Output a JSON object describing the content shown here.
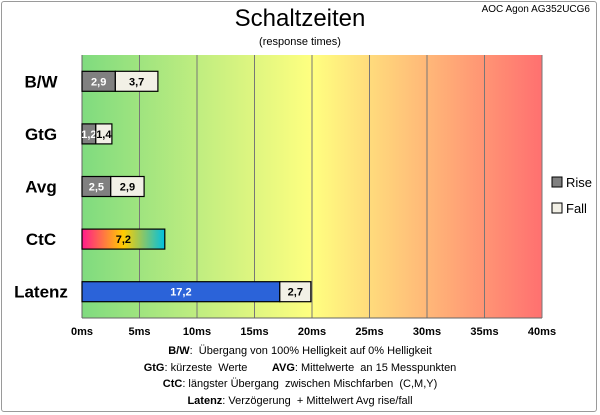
{
  "title": "Schaltzeiten",
  "subtitle": "(response times)",
  "corner_label": "AOC Agon AG352UCG6",
  "chart_data": {
    "type": "bar",
    "orientation": "horizontal",
    "stacked": true,
    "categories": [
      "B/W",
      "GtG",
      "Avg",
      "CtC",
      "Latenz"
    ],
    "series": [
      {
        "name": "Rise",
        "values": [
          2.9,
          1.2,
          2.5,
          7.2,
          17.2
        ],
        "labels": [
          "2,9",
          "1,2",
          "2,5",
          "7,2",
          "17,2"
        ]
      },
      {
        "name": "Fall",
        "values": [
          3.7,
          1.4,
          2.9,
          null,
          2.7
        ],
        "labels": [
          "3,7",
          "1,4",
          "2,9",
          null,
          "2,7"
        ]
      }
    ],
    "xlim": [
      0,
      40
    ],
    "xticks": [
      0,
      5,
      10,
      15,
      20,
      25,
      30,
      35,
      40
    ],
    "xtick_labels": [
      "0ms",
      "5ms",
      "10ms",
      "15ms",
      "20ms",
      "25ms",
      "30ms",
      "35ms",
      "40ms"
    ],
    "grid": true,
    "legend_position": "right",
    "background_gradient": [
      "#7fdb7f",
      "#ffff80",
      "#ff7070"
    ],
    "colors": {
      "rise": "#808080",
      "fall": "#f2f0e6",
      "latenz": "#2b63d9",
      "ctc": [
        "#ff1a8c",
        "#ffcc00",
        "#00c0e0"
      ]
    }
  },
  "footnotes": [
    {
      "key": "B/W",
      "text": ":  Übergang von 100% Helligkeit auf 0% Helligkeit"
    },
    {
      "key": "GtG",
      "text": ": kürzeste  Werte",
      "key2": "AVG",
      "text2": ": Mittelwerte  an 15 Messpunkten"
    },
    {
      "key": "CtC",
      "text": ": längster Übergang  zwischen Mischfarben  (C,M,Y)"
    },
    {
      "key": "Latenz",
      "text": ": Verzögerung  + Mittelwert Avg rise/fall"
    }
  ]
}
